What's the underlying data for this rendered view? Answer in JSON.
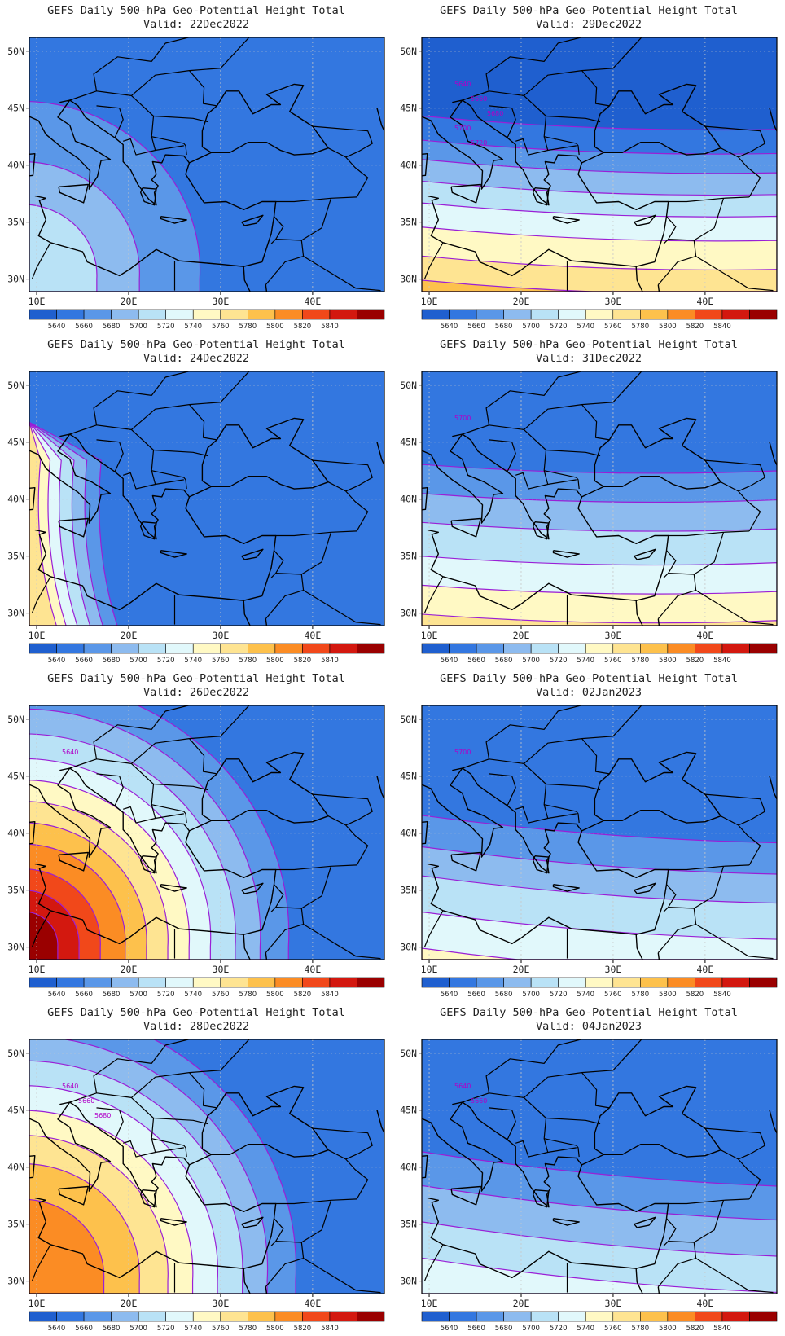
{
  "figure": {
    "panel_title_line1": "GEFS Daily 500-hPa Geo-Potential Height Total",
    "lat_ticks": [
      "50N",
      "45N",
      "40N",
      "35N",
      "30N"
    ],
    "lon_ticks": [
      "10E",
      "20E",
      "30E",
      "40E"
    ],
    "colorbar_labels": [
      "5640",
      "5660",
      "5680",
      "5700",
      "5720",
      "5740",
      "5760",
      "5780",
      "5800",
      "5820",
      "5840"
    ],
    "colorbar_colors": [
      "#1f5fcf",
      "#3377e0",
      "#5a97e8",
      "#8dbbef",
      "#b9e2f6",
      "#e1f8fb",
      "#fff9c4",
      "#fee492",
      "#fdc14c",
      "#fb8c24",
      "#f1481a",
      "#d3180f",
      "#9a0000"
    ],
    "contour_color": "#9a1fd6",
    "coast_color": "#000000"
  },
  "panels": [
    {
      "valid_label": "Valid: 22Dec2022",
      "contour_labels": []
    },
    {
      "valid_label": "Valid: 29Dec2022",
      "contour_labels": [
        "5640",
        "5660",
        "5680",
        "5700",
        "5720"
      ]
    },
    {
      "valid_label": "Valid: 24Dec2022",
      "contour_labels": []
    },
    {
      "valid_label": "Valid: 31Dec2022",
      "contour_labels": [
        "5700"
      ]
    },
    {
      "valid_label": "Valid: 26Dec2022",
      "contour_labels": [
        "5640"
      ]
    },
    {
      "valid_label": "Valid: 02Jan2023",
      "contour_labels": [
        "5700"
      ]
    },
    {
      "valid_label": "Valid: 28Dec2022",
      "contour_labels": [
        "5640",
        "5660",
        "5680"
      ]
    },
    {
      "valid_label": "Valid: 04Jan2023",
      "contour_labels": [
        "5640",
        "5660"
      ]
    }
  ]
}
